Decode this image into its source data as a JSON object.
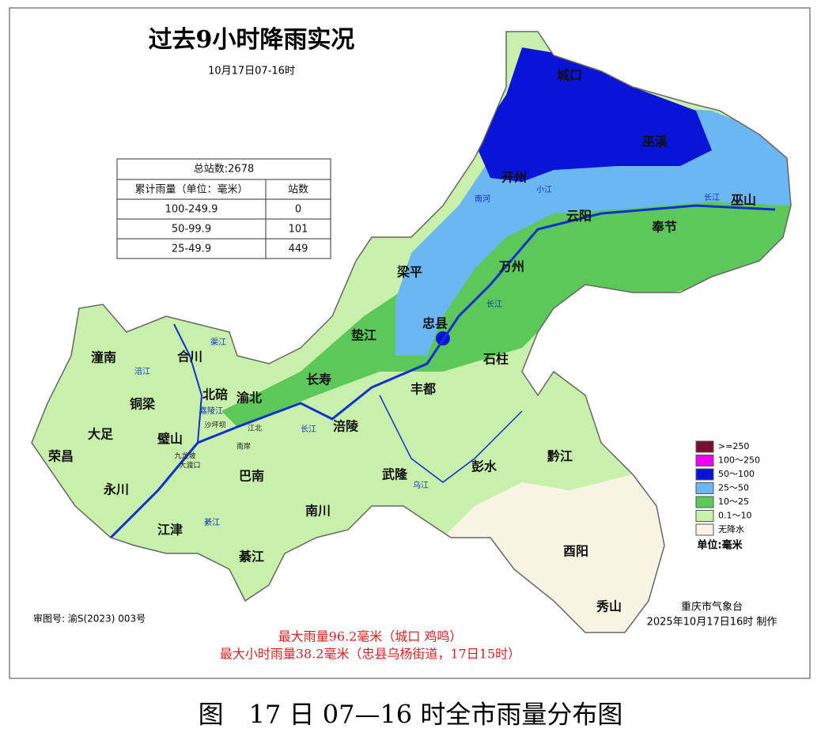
{
  "header": {
    "title": "过去9小时降雨实况",
    "subtitle": "10月17日07-16时"
  },
  "table": {
    "total": "总站数:2678",
    "columns": [
      "累计雨量（单位：毫米）",
      "站数"
    ],
    "rows": [
      [
        "100-249.9",
        "0"
      ],
      [
        "50-99.9",
        "101"
      ],
      [
        "25-49.9",
        "449"
      ]
    ]
  },
  "legend": {
    "items": [
      {
        "label": ">=250",
        "color": "#7a1030"
      },
      {
        "label": "100～250",
        "color": "#f000f0"
      },
      {
        "label": "50～100",
        "color": "#0a14d8"
      },
      {
        "label": "25～50",
        "color": "#6cb6f2"
      },
      {
        "label": "10～25",
        "color": "#5cc85a"
      },
      {
        "label": "0.1～10",
        "color": "#c8f0aa"
      },
      {
        "label": "无降水",
        "color": "#f8f4e4"
      }
    ],
    "unit": "单位:毫米"
  },
  "places": [
    "城口",
    "巫溪",
    "开州",
    "云阳",
    "巫山",
    "奉节",
    "万州",
    "梁平",
    "忠县",
    "垫江",
    "石柱",
    "长寿",
    "丰都",
    "涪陵",
    "渝北",
    "北碚",
    "合川",
    "潼南",
    "铜梁",
    "大足",
    "荣昌",
    "永川",
    "璧山",
    "江津",
    "巴南",
    "南川",
    "武隆",
    "彭水",
    "黔江",
    "酉阳",
    "秀山",
    "綦江"
  ],
  "rivers": [
    "长江",
    "长江",
    "长江",
    "乌江",
    "嘉陵江",
    "涪江",
    "渠江",
    "南河",
    "小江",
    "綦江"
  ],
  "districts": [
    "沙坪坝",
    "江北",
    "南岸",
    "九龙坡",
    "大渡口"
  ],
  "approval": "审图号: 渝S(2023) 003号",
  "producer": {
    "org": "重庆市气象台",
    "time": "2025年10月17日16时 制作"
  },
  "notes": [
    "最大雨量96.2毫米（城口 鸡鸣）",
    "最大小时雨量38.2毫米（忠县乌杨街道，17日15时）"
  ],
  "caption": "图　17 日 07—16 时全市雨量分布图"
}
